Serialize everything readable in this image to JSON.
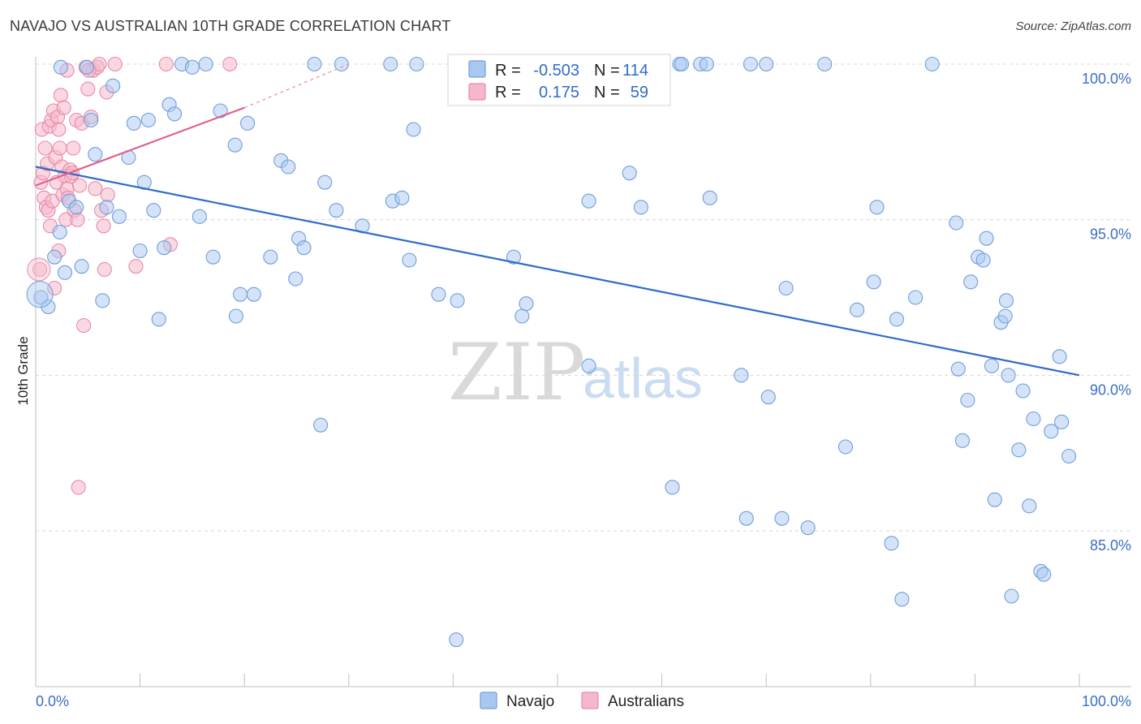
{
  "title": "NAVAJO VS AUSTRALIAN 10TH GRADE CORRELATION CHART",
  "source": "Source: ZipAtlas.com",
  "watermark": {
    "zip": "ZIP",
    "atlas": "atlas"
  },
  "colors": {
    "navajo_fill": "#aac8ef",
    "navajo_stroke": "#6f9fdc",
    "navajo_line": "#2f6bc9",
    "australians_fill": "#f5b8cb",
    "australians_stroke": "#e98aa8",
    "australians_line": "#e0608e",
    "axis_label": "#3a6fc4",
    "grid": "#d7d7d7"
  },
  "legend": {
    "r_label": "R =",
    "n_label": "N =",
    "navajo_r": "-0.503",
    "navajo_n": "114",
    "australians_r": "0.175",
    "australians_n": "59"
  },
  "chart_data": {
    "type": "scatter",
    "title": "NAVAJO VS AUSTRALIAN 10TH GRADE CORRELATION CHART",
    "xlabel": "",
    "ylabel": "10th Grade",
    "xlim": [
      0,
      100
    ],
    "ylim": [
      80.3,
      100.4
    ],
    "x_tick_labels": [
      "0.0%",
      "100.0%"
    ],
    "y_ticks": [
      85,
      90,
      95,
      100
    ],
    "y_tick_labels": [
      "85.0%",
      "90.0%",
      "95.0%",
      "100.0%"
    ],
    "grid": true,
    "legend_position": "bottom-center",
    "series": [
      {
        "name": "Navajo",
        "r": -0.503,
        "n": 114,
        "trend": {
          "x": [
            0,
            100
          ],
          "y": [
            96.7,
            90.0
          ]
        },
        "points": [
          [
            0.5,
            92.5
          ],
          [
            1.2,
            92.2
          ],
          [
            1.8,
            93.8
          ],
          [
            2.3,
            94.6
          ],
          [
            2.8,
            93.3
          ],
          [
            3.2,
            95.6
          ],
          [
            3.9,
            95.4
          ],
          [
            4.4,
            93.5
          ],
          [
            5.3,
            98.2
          ],
          [
            5.7,
            97.1
          ],
          [
            6.4,
            92.4
          ],
          [
            6.8,
            95.4
          ],
          [
            7.4,
            99.3
          ],
          [
            8.0,
            95.1
          ],
          [
            8.9,
            97.0
          ],
          [
            9.4,
            98.1
          ],
          [
            10.0,
            94.0
          ],
          [
            10.4,
            96.2
          ],
          [
            10.8,
            98.2
          ],
          [
            11.3,
            95.3
          ],
          [
            11.8,
            91.8
          ],
          [
            12.3,
            94.1
          ],
          [
            12.8,
            98.7
          ],
          [
            13.3,
            98.4
          ],
          [
            14.0,
            100.0
          ],
          [
            15.7,
            95.1
          ],
          [
            16.3,
            100.0
          ],
          [
            17.0,
            93.8
          ],
          [
            17.7,
            98.5
          ],
          [
            19.1,
            97.4
          ],
          [
            19.2,
            91.9
          ],
          [
            19.6,
            92.6
          ],
          [
            20.3,
            98.1
          ],
          [
            20.9,
            92.6
          ],
          [
            22.5,
            93.8
          ],
          [
            23.5,
            96.9
          ],
          [
            24.2,
            96.7
          ],
          [
            24.9,
            93.1
          ],
          [
            25.2,
            94.4
          ],
          [
            25.7,
            94.1
          ],
          [
            27.3,
            88.4
          ],
          [
            27.7,
            96.2
          ],
          [
            26.7,
            100.0
          ],
          [
            28.8,
            95.3
          ],
          [
            29.3,
            100.0
          ],
          [
            31.3,
            94.8
          ],
          [
            34.0,
            100.0
          ],
          [
            34.2,
            95.6
          ],
          [
            35.1,
            95.7
          ],
          [
            35.8,
            93.7
          ],
          [
            36.2,
            97.9
          ],
          [
            36.5,
            100.0
          ],
          [
            38.6,
            92.6
          ],
          [
            40.4,
            92.4
          ],
          [
            40.3,
            81.5
          ],
          [
            45.8,
            93.8
          ],
          [
            46.6,
            91.9
          ],
          [
            47.0,
            92.3
          ],
          [
            53.0,
            90.3
          ],
          [
            53.0,
            95.6
          ],
          [
            56.9,
            96.5
          ],
          [
            58.0,
            95.4
          ],
          [
            61.0,
            86.4
          ],
          [
            61.7,
            100.0
          ],
          [
            61.9,
            100.0
          ],
          [
            63.7,
            100.0
          ],
          [
            64.6,
            95.7
          ],
          [
            67.6,
            90.0
          ],
          [
            68.1,
            85.4
          ],
          [
            68.5,
            100.0
          ],
          [
            70.0,
            100.0
          ],
          [
            70.2,
            89.3
          ],
          [
            71.5,
            85.4
          ],
          [
            71.9,
            92.8
          ],
          [
            74.0,
            85.1
          ],
          [
            75.6,
            100.0
          ],
          [
            77.6,
            87.7
          ],
          [
            78.7,
            92.1
          ],
          [
            80.3,
            93.0
          ],
          [
            80.6,
            95.4
          ],
          [
            82.0,
            84.6
          ],
          [
            82.5,
            91.8
          ],
          [
            83.0,
            82.8
          ],
          [
            84.3,
            92.5
          ],
          [
            85.9,
            100.0
          ],
          [
            88.2,
            94.9
          ],
          [
            88.4,
            90.2
          ],
          [
            88.8,
            87.9
          ],
          [
            89.3,
            89.2
          ],
          [
            89.6,
            93.0
          ],
          [
            90.3,
            93.8
          ],
          [
            90.8,
            93.7
          ],
          [
            91.1,
            94.4
          ],
          [
            91.6,
            90.3
          ],
          [
            91.9,
            86.0
          ],
          [
            92.5,
            91.7
          ],
          [
            92.9,
            91.9
          ],
          [
            93.0,
            92.4
          ],
          [
            93.2,
            90.0
          ],
          [
            93.5,
            82.9
          ],
          [
            94.2,
            87.6
          ],
          [
            94.6,
            89.5
          ],
          [
            95.2,
            85.8
          ],
          [
            95.6,
            88.6
          ],
          [
            96.3,
            83.7
          ],
          [
            96.6,
            83.6
          ],
          [
            97.3,
            88.2
          ],
          [
            98.1,
            90.6
          ],
          [
            98.3,
            88.5
          ],
          [
            99.0,
            87.4
          ],
          [
            2.4,
            99.9
          ],
          [
            4.9,
            99.9
          ],
          [
            15.0,
            99.9
          ],
          [
            64.3,
            100.0
          ]
        ]
      },
      {
        "name": "Australians",
        "r": 0.175,
        "n": 59,
        "trend": {
          "x": [
            0,
            20
          ],
          "y": [
            96.1,
            98.6
          ]
        },
        "trend_dashed": {
          "x": [
            20,
            30
          ],
          "y": [
            98.6,
            100.0
          ]
        },
        "points": [
          [
            0.4,
            93.4
          ],
          [
            0.5,
            96.2
          ],
          [
            0.6,
            97.9
          ],
          [
            0.7,
            96.5
          ],
          [
            0.8,
            95.7
          ],
          [
            0.9,
            97.3
          ],
          [
            1.0,
            95.4
          ],
          [
            1.1,
            96.8
          ],
          [
            1.2,
            95.3
          ],
          [
            1.3,
            98.0
          ],
          [
            1.5,
            98.2
          ],
          [
            1.6,
            95.6
          ],
          [
            1.7,
            98.5
          ],
          [
            1.8,
            92.8
          ],
          [
            1.9,
            97.0
          ],
          [
            2.0,
            96.2
          ],
          [
            2.1,
            98.3
          ],
          [
            2.2,
            94.0
          ],
          [
            2.3,
            97.3
          ],
          [
            2.4,
            99.0
          ],
          [
            2.5,
            96.7
          ],
          [
            2.6,
            95.8
          ],
          [
            2.7,
            98.6
          ],
          [
            2.8,
            96.4
          ],
          [
            2.9,
            95.0
          ],
          [
            3.0,
            96.0
          ],
          [
            3.1,
            95.7
          ],
          [
            3.3,
            96.6
          ],
          [
            3.4,
            96.4
          ],
          [
            3.6,
            97.3
          ],
          [
            3.7,
            95.3
          ],
          [
            3.9,
            98.2
          ],
          [
            4.0,
            95.0
          ],
          [
            4.2,
            96.1
          ],
          [
            4.4,
            98.1
          ],
          [
            4.6,
            91.6
          ],
          [
            4.8,
            99.9
          ],
          [
            5.0,
            99.2
          ],
          [
            5.3,
            98.3
          ],
          [
            5.5,
            99.8
          ],
          [
            5.7,
            96.0
          ],
          [
            5.9,
            99.9
          ],
          [
            6.1,
            100.0
          ],
          [
            6.3,
            95.3
          ],
          [
            6.5,
            94.8
          ],
          [
            6.6,
            93.4
          ],
          [
            6.8,
            99.1
          ],
          [
            6.9,
            95.8
          ],
          [
            3.0,
            99.8
          ],
          [
            4.1,
            86.4
          ],
          [
            7.6,
            100.0
          ],
          [
            9.6,
            93.5
          ],
          [
            12.9,
            94.2
          ],
          [
            12.5,
            100.0
          ],
          [
            18.6,
            100.0
          ],
          [
            1.4,
            94.8
          ],
          [
            2.2,
            97.9
          ],
          [
            3.5,
            96.5
          ],
          [
            5.1,
            99.8
          ]
        ]
      }
    ]
  },
  "axis_labels": {
    "x_left": "0.0%",
    "x_right": "100.0%"
  },
  "bottom_legend": {
    "navajo": "Navajo",
    "australians": "Australians"
  }
}
